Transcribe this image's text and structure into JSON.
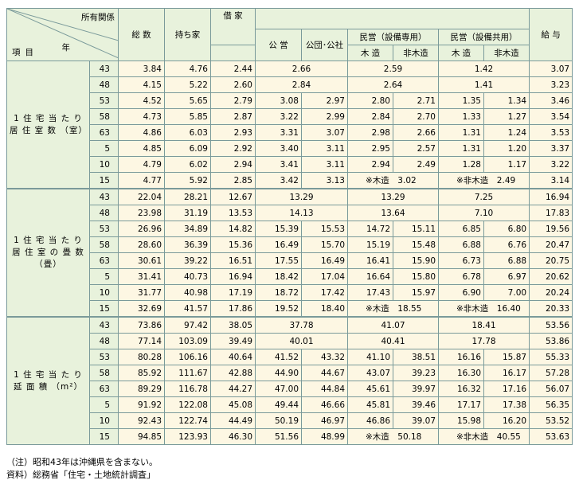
{
  "header": {
    "corner_owner": "所有関係",
    "corner_year": "年",
    "corner_item": "項目",
    "total": "総 数",
    "owned": "持ち家",
    "rented": "借 家",
    "public": "公 営",
    "corp": "公団･公社",
    "private_exclusive": "民営（設備専用）",
    "private_shared": "民営（設備共用）",
    "wood": "木 造",
    "nonwood": "非木造",
    "wages": "給 与"
  },
  "sections": [
    {
      "item": "1 住 宅 当 た り 居 住 室 数 （室）",
      "rows": [
        {
          "year": "43",
          "total": "3.84",
          "owned": "4.76",
          "rented": "2.44",
          "pub_merged": "2.66",
          "pe_merged": "2.59",
          "ps_merged": "1.42",
          "wages": "3.07"
        },
        {
          "year": "48",
          "total": "4.15",
          "owned": "5.22",
          "rented": "2.60",
          "pub_merged": "2.84",
          "pe_merged": "2.64",
          "ps_merged": "1.41",
          "wages": "3.23"
        },
        {
          "year": "53",
          "total": "4.52",
          "owned": "5.65",
          "rented": "2.79",
          "public": "3.08",
          "corp": "2.97",
          "pe_wood": "2.80",
          "pe_nonwood": "2.71",
          "ps_wood": "1.35",
          "ps_nonwood": "1.34",
          "wages": "3.46"
        },
        {
          "year": "58",
          "total": "4.73",
          "owned": "5.85",
          "rented": "2.87",
          "public": "3.22",
          "corp": "2.99",
          "pe_wood": "2.84",
          "pe_nonwood": "2.70",
          "ps_wood": "1.33",
          "ps_nonwood": "1.27",
          "wages": "3.54"
        },
        {
          "year": "63",
          "total": "4.86",
          "owned": "6.03",
          "rented": "2.93",
          "public": "3.31",
          "corp": "3.07",
          "pe_wood": "2.98",
          "pe_nonwood": "2.66",
          "ps_wood": "1.31",
          "ps_nonwood": "1.24",
          "wages": "3.53"
        },
        {
          "year": "5",
          "total": "4.85",
          "owned": "6.09",
          "rented": "2.92",
          "public": "3.40",
          "corp": "3.11",
          "pe_wood": "2.95",
          "pe_nonwood": "2.57",
          "ps_wood": "1.31",
          "ps_nonwood": "1.20",
          "wages": "3.37"
        },
        {
          "year": "10",
          "total": "4.79",
          "owned": "6.02",
          "rented": "2.94",
          "public": "3.41",
          "corp": "3.11",
          "pe_wood": "2.94",
          "pe_nonwood": "2.49",
          "ps_wood": "1.28",
          "ps_nonwood": "1.17",
          "wages": "3.22"
        },
        {
          "year": "15",
          "total": "4.77",
          "owned": "5.92",
          "rented": "2.85",
          "public": "3.42",
          "corp": "3.13",
          "note_wood": "※木造　3.02",
          "note_nonwood": "※非木造　2.49",
          "wages": "3.14"
        }
      ]
    },
    {
      "item": "1 住 宅 当 た り 居 住 室 の 畳 数 （畳）",
      "rows": [
        {
          "year": "43",
          "total": "22.04",
          "owned": "28.21",
          "rented": "12.67",
          "pub_merged": "13.29",
          "pe_merged": "13.29",
          "ps_merged": "7.25",
          "wages": "16.94"
        },
        {
          "year": "48",
          "total": "23.98",
          "owned": "31.19",
          "rented": "13.53",
          "pub_merged": "14.13",
          "pe_merged": "13.64",
          "ps_merged": "7.10",
          "wages": "17.83"
        },
        {
          "year": "53",
          "total": "26.96",
          "owned": "34.89",
          "rented": "14.82",
          "public": "15.39",
          "corp": "15.53",
          "pe_wood": "14.72",
          "pe_nonwood": "15.11",
          "ps_wood": "6.85",
          "ps_nonwood": "6.80",
          "wages": "19.56"
        },
        {
          "year": "58",
          "total": "28.60",
          "owned": "36.39",
          "rented": "15.36",
          "public": "16.49",
          "corp": "15.70",
          "pe_wood": "15.19",
          "pe_nonwood": "15.48",
          "ps_wood": "6.88",
          "ps_nonwood": "6.76",
          "wages": "20.47"
        },
        {
          "year": "63",
          "total": "30.61",
          "owned": "39.22",
          "rented": "16.51",
          "public": "17.55",
          "corp": "16.49",
          "pe_wood": "16.41",
          "pe_nonwood": "15.90",
          "ps_wood": "6.73",
          "ps_nonwood": "6.88",
          "wages": "20.75"
        },
        {
          "year": "5",
          "total": "31.41",
          "owned": "40.73",
          "rented": "16.94",
          "public": "18.42",
          "corp": "17.04",
          "pe_wood": "16.64",
          "pe_nonwood": "15.80",
          "ps_wood": "6.78",
          "ps_nonwood": "6.97",
          "wages": "20.62"
        },
        {
          "year": "10",
          "total": "31.77",
          "owned": "40.98",
          "rented": "17.19",
          "public": "18.72",
          "corp": "17.42",
          "pe_wood": "17.43",
          "pe_nonwood": "15.97",
          "ps_wood": "6.90",
          "ps_nonwood": "7.00",
          "wages": "20.24"
        },
        {
          "year": "15",
          "total": "32.69",
          "owned": "41.57",
          "rented": "17.86",
          "public": "19.52",
          "corp": "18.40",
          "note_wood": "※木造　18.55",
          "note_nonwood": "※非木造　16.40",
          "wages": "20.33"
        }
      ]
    },
    {
      "item": "1 住 宅 当 た り 延 面 積 （m²）",
      "rows": [
        {
          "year": "43",
          "total": "73.86",
          "owned": "97.42",
          "rented": "38.05",
          "pub_merged": "37.78",
          "pe_merged": "41.07",
          "ps_merged": "18.41",
          "wages": "53.56"
        },
        {
          "year": "48",
          "total": "77.14",
          "owned": "103.09",
          "rented": "39.49",
          "pub_merged": "40.01",
          "pe_merged": "40.41",
          "ps_merged": "17.78",
          "wages": "53.86"
        },
        {
          "year": "53",
          "total": "80.28",
          "owned": "106.16",
          "rented": "40.64",
          "public": "41.52",
          "corp": "43.32",
          "pe_wood": "41.10",
          "pe_nonwood": "38.51",
          "ps_wood": "16.16",
          "ps_nonwood": "15.87",
          "wages": "55.33"
        },
        {
          "year": "58",
          "total": "85.92",
          "owned": "111.67",
          "rented": "42.88",
          "public": "44.90",
          "corp": "44.67",
          "pe_wood": "43.07",
          "pe_nonwood": "39.23",
          "ps_wood": "16.30",
          "ps_nonwood": "16.17",
          "wages": "57.28"
        },
        {
          "year": "63",
          "total": "89.29",
          "owned": "116.78",
          "rented": "44.27",
          "public": "47.00",
          "corp": "44.84",
          "pe_wood": "45.61",
          "pe_nonwood": "39.97",
          "ps_wood": "16.32",
          "ps_nonwood": "17.16",
          "wages": "56.07"
        },
        {
          "year": "5",
          "total": "91.92",
          "owned": "122.08",
          "rented": "45.08",
          "public": "49.44",
          "corp": "46.66",
          "pe_wood": "45.81",
          "pe_nonwood": "39.46",
          "ps_wood": "17.17",
          "ps_nonwood": "17.38",
          "wages": "56.35"
        },
        {
          "year": "10",
          "total": "92.43",
          "owned": "122.74",
          "rented": "44.49",
          "public": "50.19",
          "corp": "46.97",
          "pe_wood": "46.86",
          "pe_nonwood": "39.07",
          "ps_wood": "15.98",
          "ps_nonwood": "16.20",
          "wages": "53.52"
        },
        {
          "year": "15",
          "total": "94.85",
          "owned": "123.93",
          "rented": "46.30",
          "public": "51.56",
          "corp": "48.99",
          "note_wood": "※木造　50.18",
          "note_nonwood": "※非木造　40.55",
          "wages": "53.63"
        }
      ]
    }
  ],
  "footnotes": {
    "note": "（注）昭和43年は沖縄県を含まない。",
    "source": "資料）総務省「住宅・土地統計調査」"
  }
}
